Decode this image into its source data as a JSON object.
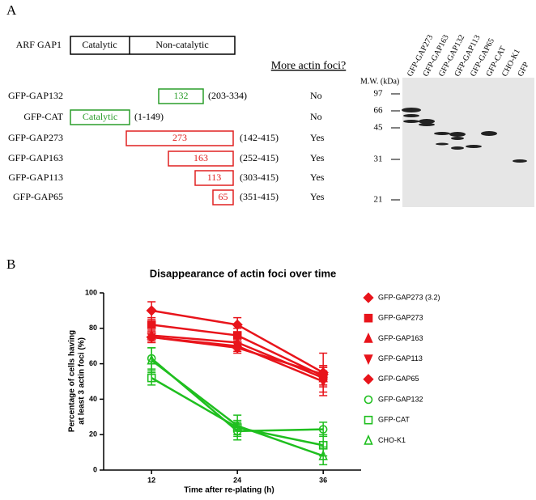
{
  "panel_a": {
    "label": "A",
    "domain_bar": {
      "name": "ARF GAP1",
      "parts": [
        "Catalytic",
        "Non-catalytic"
      ]
    },
    "question": "More actin foci?",
    "rows": [
      {
        "name": "GFP-GAP132",
        "box": "132",
        "range": "(203-334)",
        "answer": "No",
        "color": "#2a9d2a"
      },
      {
        "name": "GFP-CAT",
        "box": "Catalytic",
        "range": "(1-149)",
        "answer": "No",
        "color": "#2a9d2a"
      },
      {
        "name": "GFP-GAP273",
        "box": "273",
        "range": "(142-415)",
        "answer": "Yes",
        "color": "#e02020"
      },
      {
        "name": "GFP-GAP163",
        "box": "163",
        "range": "(252-415)",
        "answer": "Yes",
        "color": "#e02020"
      },
      {
        "name": "GFP-GAP113",
        "box": "113",
        "range": "(303-415)",
        "answer": "Yes",
        "color": "#e02020"
      },
      {
        "name": "GFP-GAP65",
        "box": "65",
        "range": "(351-415)",
        "answer": "Yes",
        "color": "#e02020"
      }
    ],
    "gel": {
      "mw_label": "M.W. (kDa)",
      "markers": [
        "97",
        "66",
        "45",
        "31",
        "21"
      ],
      "lanes": [
        "GFP-GAP273",
        "GFP-GAP163",
        "GFP-GAP132",
        "GFP-GAP113",
        "GFP-GAP65",
        "GFP-CAT",
        "CHO-K1",
        "GFP"
      ]
    }
  },
  "chart_data": {
    "type": "line",
    "panel_label": "B",
    "title": "Disappearance of actin foci over time",
    "x_label": "Time after re-plating (h)",
    "y_label": [
      "Percentage of cells having",
      "at least 3 actin foci (%)"
    ],
    "x": [
      12,
      24,
      36
    ],
    "xlim": [
      5.3,
      41.3
    ],
    "xticks": [
      12,
      24,
      36
    ],
    "ylim": [
      0,
      100
    ],
    "yticks": [
      0,
      20,
      40,
      60,
      80,
      100
    ],
    "legend": "right",
    "series": [
      {
        "name": "GFP-GAP273 (3.2)",
        "color": "#e8141b",
        "marker": "diamond",
        "values": [
          90,
          82,
          55
        ],
        "errors": [
          5,
          4,
          11
        ]
      },
      {
        "name": "GFP-GAP273",
        "color": "#e8141b",
        "marker": "square",
        "values": [
          82,
          76,
          53
        ],
        "errors": [
          4,
          4,
          6
        ]
      },
      {
        "name": "GFP-GAP163",
        "color": "#e8141b",
        "marker": "triangle",
        "values": [
          76,
          72,
          52
        ],
        "errors": [
          3,
          3,
          4
        ]
      },
      {
        "name": "GFP-GAP113",
        "color": "#e8141b",
        "marker": "triangle-down",
        "values": [
          75,
          70,
          50
        ],
        "errors": [
          3,
          3,
          8
        ]
      },
      {
        "name": "GFP-GAP65",
        "color": "#e8141b",
        "marker": "diamond",
        "values": [
          75,
          69,
          54
        ],
        "errors": [
          3,
          3,
          4
        ]
      },
      {
        "name": "GFP-GAP132",
        "color": "#1fbf1f",
        "marker": "open-circle",
        "values": [
          63,
          22,
          23
        ],
        "errors": [
          6,
          5,
          4
        ]
      },
      {
        "name": "GFP-CAT",
        "color": "#1fbf1f",
        "marker": "open-square",
        "values": [
          52,
          24,
          14
        ],
        "errors": [
          4,
          4,
          6
        ]
      },
      {
        "name": "CHO-K1",
        "color": "#1fbf1f",
        "marker": "open-triangle",
        "values": [
          62,
          25,
          8
        ],
        "errors": [
          7,
          6,
          5
        ]
      }
    ]
  }
}
